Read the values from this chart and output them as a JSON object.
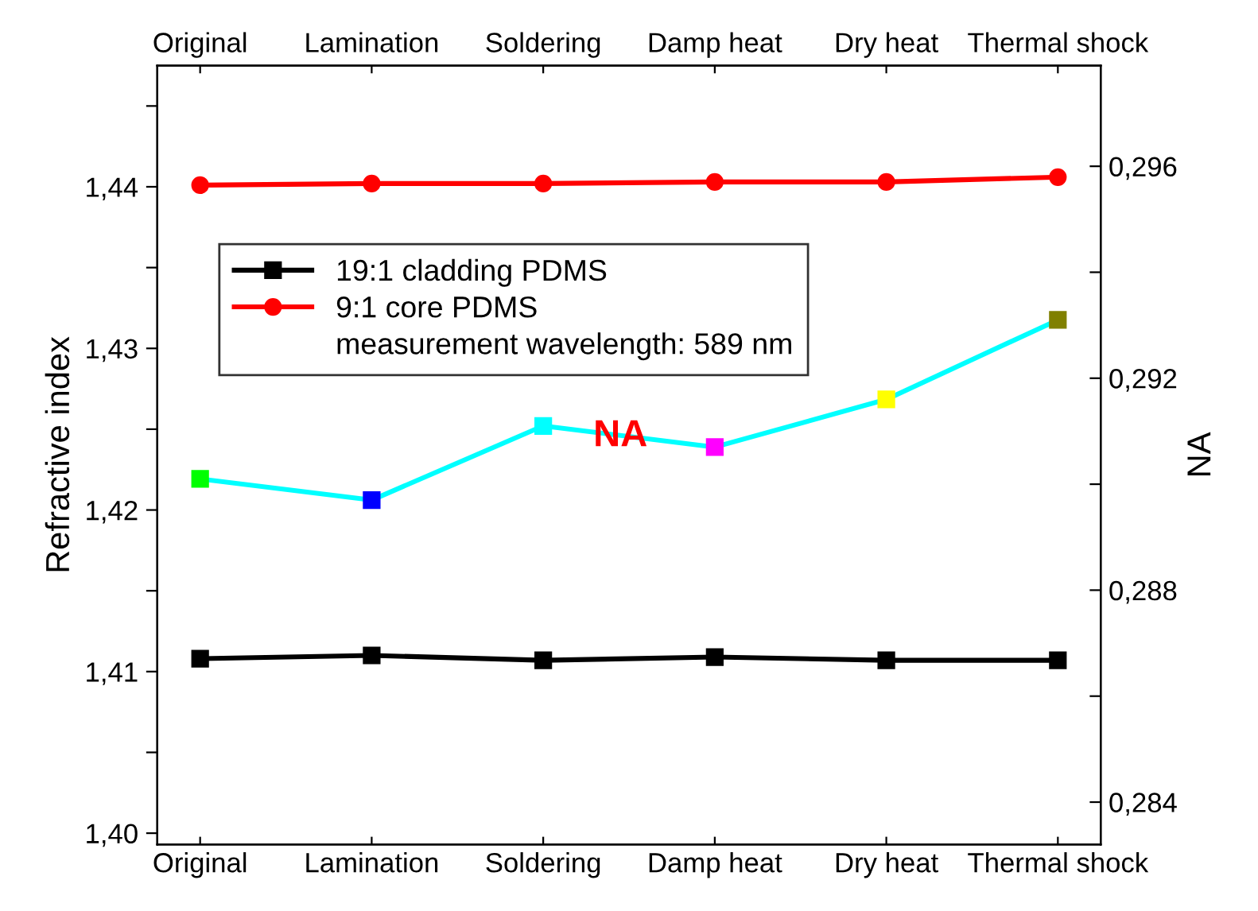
{
  "chart_data": {
    "type": "line",
    "xlabel": null,
    "ylabel": "Refractive index",
    "y2label": "NA",
    "categories": [
      "Original",
      "Lamination",
      "Soldering",
      "Damp heat",
      "Dry heat",
      "Thermal shock"
    ],
    "series": [
      {
        "name": "19:1 cladding PDMS",
        "color": "#000000",
        "marker": "square",
        "values": [
          1.4108,
          1.411,
          1.4107,
          1.4109,
          1.4107,
          1.4107
        ]
      },
      {
        "name": "9:1 core PDMS",
        "color": "#ff0000",
        "marker": "circle",
        "values": [
          1.4401,
          1.4402,
          1.4402,
          1.4403,
          1.4403,
          1.4406
        ]
      },
      {
        "color": "#00ffff",
        "marker": "square",
        "axis": "y2",
        "colors": [
          "#00ff00",
          "#0000ff",
          "#00ffff",
          "#ff00ff",
          "#ffff00",
          "#808000"
        ],
        "values": [
          0.2901,
          0.2897,
          0.2911,
          0.2907,
          0.2916,
          0.2931
        ]
      }
    ],
    "annotations": [
      "measurement wavelength: 589 nm",
      "NA"
    ],
    "ylim": [
      1.3993,
      1.4475
    ],
    "yticks": [
      {
        "value": 1.4,
        "label": "1,40"
      },
      {
        "value": 1.405,
        "label": null
      },
      {
        "value": 1.41,
        "label": "1,41"
      },
      {
        "value": 1.415,
        "label": null
      },
      {
        "value": 1.42,
        "label": "1,42"
      },
      {
        "value": 1.425,
        "label": null
      },
      {
        "value": 1.43,
        "label": "1,43"
      },
      {
        "value": 1.435,
        "label": null
      },
      {
        "value": 1.44,
        "label": "1,44"
      },
      {
        "value": 1.445,
        "label": null
      }
    ],
    "y2lim": [
      0.2832,
      0.2979
    ],
    "y2ticks": [
      {
        "value": 0.284,
        "label": "0,284"
      },
      {
        "value": 0.286,
        "label": null
      },
      {
        "value": 0.288,
        "label": "0,288"
      },
      {
        "value": 0.29,
        "label": null
      },
      {
        "value": 0.292,
        "label": "0,292"
      },
      {
        "value": 0.294,
        "label": null
      },
      {
        "value": 0.296,
        "label": "0,296"
      }
    ],
    "grid": false,
    "legend": "top left",
    "line_style": "solid"
  }
}
